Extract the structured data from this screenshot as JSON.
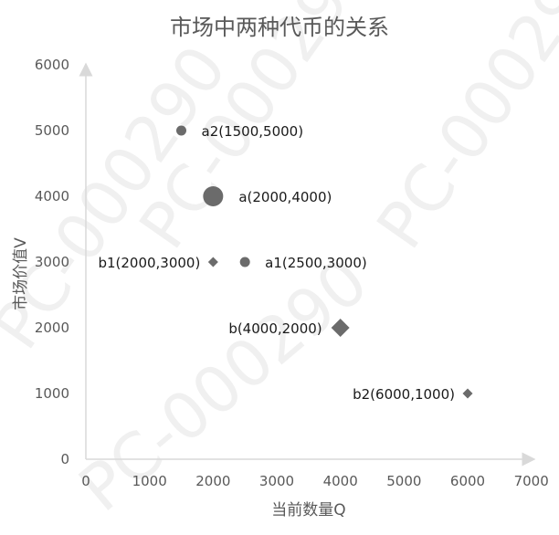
{
  "chart_data": {
    "type": "scatter",
    "title": "市场中两种代币的关系",
    "xlabel": "当前数量Q",
    "ylabel": "市场价值V",
    "xlim": [
      0,
      7000
    ],
    "ylim": [
      0,
      6000
    ],
    "x_ticks": [
      "0",
      "1000",
      "2000",
      "3000",
      "4000",
      "5000",
      "6000",
      "7000"
    ],
    "y_ticks": [
      "0",
      "1000",
      "2000",
      "3000",
      "4000",
      "5000",
      "6000"
    ],
    "grid": false,
    "legend": "none",
    "axis_color": "#d9d9d9",
    "marker_color": "#6b6b6b",
    "watermark_color": "#f0f0f0",
    "watermark": "PC-000290",
    "points": [
      {
        "label": "a2(1500,5000)",
        "x": 1500,
        "y": 5000,
        "shape": "circle",
        "size": "small",
        "label_side": "right"
      },
      {
        "label": "a(2000,4000)",
        "x": 2000,
        "y": 4000,
        "shape": "circle",
        "size": "large",
        "label_side": "right"
      },
      {
        "label": "b1(2000,3000)",
        "x": 2000,
        "y": 3000,
        "shape": "diamond",
        "size": "small",
        "label_side": "left"
      },
      {
        "label": "a1(2500,3000)",
        "x": 2500,
        "y": 3000,
        "shape": "circle",
        "size": "small",
        "label_side": "right"
      },
      {
        "label": "b(4000,2000)",
        "x": 4000,
        "y": 2000,
        "shape": "diamond",
        "size": "large",
        "label_side": "left"
      },
      {
        "label": "b2(6000,1000)",
        "x": 6000,
        "y": 1000,
        "shape": "diamond",
        "size": "small",
        "label_side": "left"
      }
    ]
  }
}
